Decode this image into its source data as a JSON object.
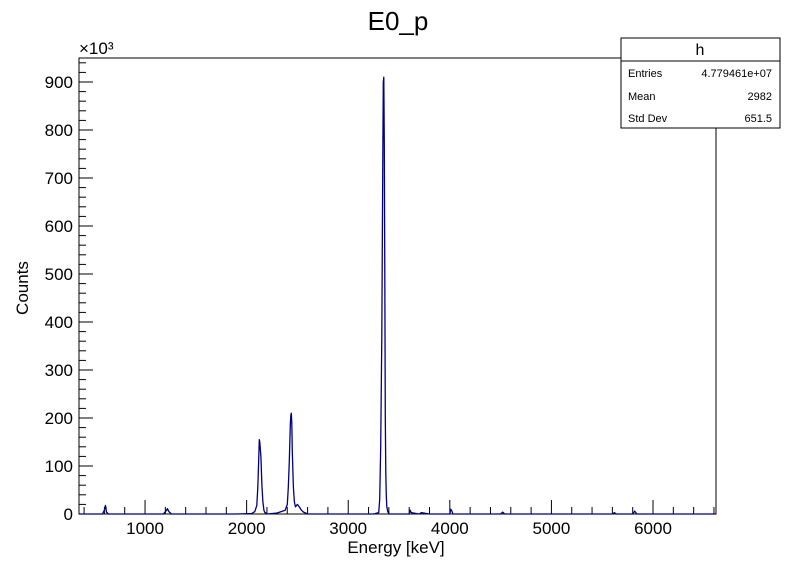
{
  "chart_data": {
    "type": "line",
    "title": "E0_p",
    "xlabel": "Energy [keV]",
    "ylabel": "Counts",
    "y_multiplier_label": "×10³",
    "xlim": [
      350,
      6620
    ],
    "ylim": [
      0,
      950
    ],
    "x_ticks": [
      1000,
      2000,
      3000,
      4000,
      5000,
      6000
    ],
    "y_ticks": [
      0,
      100,
      200,
      300,
      400,
      500,
      600,
      700,
      800,
      900
    ],
    "line_color": "#000080",
    "grid": false,
    "series": [
      {
        "x": [
          350,
          580,
          600,
          610,
          615,
          620,
          640,
          660,
          1180,
          1205,
          1220,
          1235,
          1260,
          1300,
          1900,
          2050,
          2080,
          2100,
          2110,
          2120,
          2125,
          2130,
          2140,
          2150,
          2160,
          2170,
          2180,
          2190,
          2200,
          2300,
          2380,
          2400,
          2410,
          2420,
          2430,
          2435,
          2440,
          2445,
          2450,
          2460,
          2470,
          2480,
          2500,
          2520,
          2540,
          2560,
          2580,
          2600,
          3250,
          3300,
          3310,
          3320,
          3330,
          3340,
          3345,
          3350,
          3355,
          3360,
          3365,
          3370,
          3375,
          3380,
          3390,
          3400,
          3600,
          3610,
          3620,
          3700,
          3720,
          3800,
          4000,
          4010,
          4020,
          4030,
          4500,
          4520,
          4540,
          5600,
          5620,
          5640,
          5800,
          5820,
          5840,
          6620
        ],
        "y": [
          0,
          0,
          8,
          18,
          14,
          4,
          0,
          0,
          0,
          6,
          11,
          5,
          0,
          0,
          0,
          1,
          5,
          18,
          55,
          120,
          155,
          150,
          120,
          60,
          25,
          8,
          3,
          2,
          0,
          2,
          8,
          20,
          55,
          110,
          185,
          205,
          210,
          190,
          130,
          55,
          25,
          15,
          20,
          14,
          8,
          4,
          2,
          0,
          0,
          3,
          30,
          140,
          370,
          740,
          900,
          910,
          770,
          500,
          200,
          85,
          38,
          15,
          5,
          0,
          0,
          8,
          3,
          0,
          3,
          0,
          0,
          10,
          6,
          0,
          0,
          4,
          0,
          0,
          3,
          0,
          0,
          6,
          0,
          0
        ]
      }
    ]
  },
  "stats_box": {
    "header": "h",
    "rows": [
      {
        "label": "Entries",
        "value": "4.779461e+07"
      },
      {
        "label": "Mean",
        "value": "2982"
      },
      {
        "label": "Std Dev",
        "value": "651.5"
      }
    ]
  }
}
